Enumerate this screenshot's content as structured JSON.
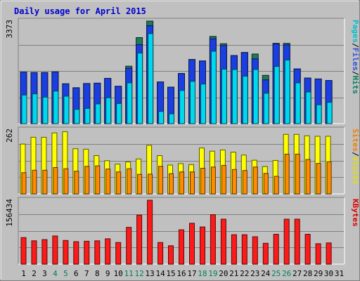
{
  "chart_data": {
    "type": "bar",
    "title": "Daily usage for April 2015",
    "x": {
      "days": [
        "1",
        "2",
        "3",
        "4",
        "5",
        "6",
        "7",
        "8",
        "9",
        "10",
        "11",
        "12",
        "13",
        "14",
        "15",
        "16",
        "17",
        "18",
        "19",
        "20",
        "21",
        "22",
        "23",
        "24",
        "25",
        "26",
        "27",
        "28",
        "29",
        "30",
        "31"
      ],
      "weekend_days": [
        "4",
        "5",
        "11",
        "12",
        "18",
        "19",
        "25",
        "26"
      ]
    },
    "panels": [
      {
        "id": "pages_files_hits",
        "max_label": "3373",
        "ymax": 3373,
        "legend": [
          {
            "text": "Pages",
            "color": "#00c0d0"
          },
          {
            "text": "/",
            "color": "#000000"
          },
          {
            "text": "Files",
            "color": "#3050e0"
          },
          {
            "text": "/",
            "color": "#000000"
          },
          {
            "text": "Hits",
            "color": "#008060"
          }
        ],
        "series": [
          {
            "name": "Hits",
            "color": "#1e7a5a",
            "values": [
              1690,
              1680,
              1680,
              1700,
              1310,
              1180,
              1320,
              1330,
              1490,
              1230,
              1890,
              2830,
              3373,
              1370,
              1200,
              1650,
              2110,
              2060,
              2870,
              2630,
              2240,
              2340,
              2290,
              1590,
              2640,
              2640,
              1800,
              1500,
              1470,
              1420,
              null
            ]
          },
          {
            "name": "Files",
            "color": "#1a3ee0",
            "values": [
              1690,
              1680,
              1680,
              1700,
              1310,
              1180,
              1320,
              1330,
              1490,
              1230,
              1820,
              2600,
              3220,
              1370,
              1200,
              1650,
              2110,
              2060,
              2790,
              2570,
              2240,
              2340,
              2130,
              1440,
              2620,
              2590,
              1800,
              1500,
              1470,
              1420,
              null
            ]
          },
          {
            "name": "Pages",
            "color": "#00d8f0",
            "values": [
              770,
              790,
              720,
              1070,
              800,
              580,
              680,
              730,
              880,
              1000,
              880,
              1750,
              2610,
              1540,
              1000,
              1280,
              1020,
              1470,
              1930,
              1300,
              1550,
              2050,
              1720,
              1320,
              1740,
              1440,
              1980,
              900,
              640,
              1700,
              null
            ],
            "values_used": [
              940,
              980,
              870,
              1070,
              900,
              470,
              500,
              650,
              850,
              660,
              1340,
              2320,
              2960,
              400,
              320,
              1090,
              1390,
              1300,
              2380,
              1790,
              1780,
              1560,
              1780,
              1000,
              1880,
              2090,
              1340,
              1040,
              620,
              700,
              null
            ]
          }
        ]
      },
      {
        "id": "visits_sites",
        "max_label": "262",
        "ymax": 262,
        "legend": [
          {
            "text": "Sites",
            "color": "#f08000"
          },
          {
            "text": "/",
            "color": "#000000"
          },
          {
            "text": "Visits",
            "color": "#e0e000"
          }
        ],
        "series": [
          {
            "name": "Visits",
            "color": "#ffff00",
            "values": [
              204,
              232,
              232,
              250,
              255,
              185,
              183,
              157,
              136,
              122,
              131,
              143,
              199,
              157,
              118,
              124,
              120,
              188,
              175,
              180,
              171,
              159,
              138,
              112,
              137,
              244,
              244,
              238,
              236,
              236,
              null
            ]
          },
          {
            "name": "Sites",
            "color": "#ff8c00",
            "values": [
              87,
              97,
              97,
              108,
              103,
              93,
              113,
              115,
              102,
              90,
              103,
              80,
              81,
              113,
              83,
              90,
              90,
              105,
              110,
              117,
              100,
              96,
              110,
              84,
              72,
              163,
              163,
              141,
              125,
              132,
              null
            ]
          }
        ]
      },
      {
        "id": "kbytes",
        "max_label": "156434",
        "ymax": 156434,
        "legend": [
          {
            "text": "KBytes",
            "color": "#e00000"
          }
        ],
        "series": [
          {
            "name": "KBytes",
            "color": "#ff1a1a",
            "values": [
              65000,
              57000,
              60000,
              69000,
              58000,
              55000,
              56000,
              57000,
              62000,
              53000,
              90000,
              120000,
              156434,
              53000,
              45000,
              84000,
              100000,
              91000,
              121000,
              110000,
              72000,
              72000,
              67000,
              51000,
              73000,
              110000,
              110000,
              73000,
              50000,
              52000,
              null
            ]
          }
        ]
      }
    ]
  }
}
